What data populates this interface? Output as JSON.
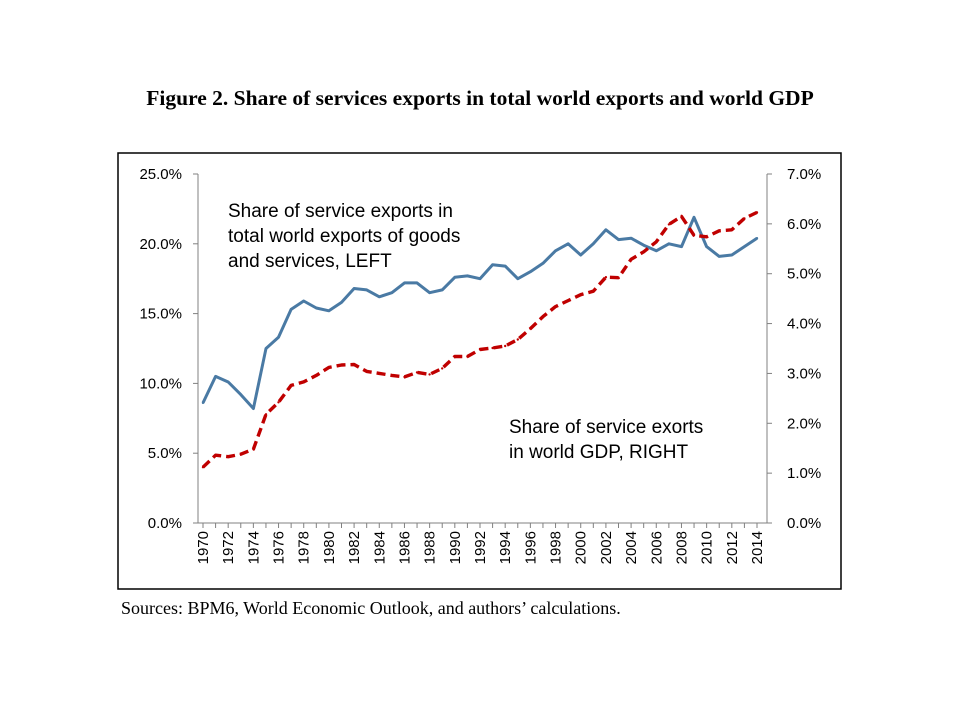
{
  "title": "Figure 2. Share of services exports in total world exports and world GDP",
  "sources": "Sources: BPM6, World Economic Outlook, and authors’ calculations.",
  "chart_data": {
    "type": "line",
    "x": [
      1970,
      1971,
      1972,
      1973,
      1974,
      1975,
      1976,
      1977,
      1978,
      1979,
      1980,
      1981,
      1982,
      1983,
      1984,
      1985,
      1986,
      1987,
      1988,
      1989,
      1990,
      1991,
      1992,
      1993,
      1994,
      1995,
      1996,
      1997,
      1998,
      1999,
      2000,
      2001,
      2002,
      2003,
      2004,
      2005,
      2006,
      2007,
      2008,
      2009,
      2010,
      2011,
      2012,
      2013,
      2014
    ],
    "x_tick_labels": [
      "1970",
      "1972",
      "1974",
      "1976",
      "1978",
      "1980",
      "1982",
      "1984",
      "1986",
      "1988",
      "1990",
      "1992",
      "1994",
      "1996",
      "1998",
      "2000",
      "2002",
      "2004",
      "2006",
      "2008",
      "2010",
      "2012",
      "2014"
    ],
    "left_axis": {
      "ylim": [
        0,
        25
      ],
      "tick_labels": [
        "0.0%",
        "5.0%",
        "10.0%",
        "15.0%",
        "20.0%",
        "25.0%"
      ]
    },
    "right_axis": {
      "ylim": [
        0,
        7
      ],
      "tick_labels": [
        "0.0%",
        "1.0%",
        "2.0%",
        "3.0%",
        "4.0%",
        "5.0%",
        "6.0%",
        "7.0%"
      ]
    },
    "series": [
      {
        "name": "Share of service exports in total world exports of goods and services, LEFT",
        "axis": "left",
        "color": "#4A7AA4",
        "style": "solid",
        "values": [
          8.6,
          10.5,
          10.1,
          9.2,
          8.2,
          12.5,
          13.3,
          15.3,
          15.9,
          15.4,
          15.2,
          15.8,
          16.8,
          16.7,
          16.2,
          16.5,
          17.2,
          17.2,
          16.5,
          16.7,
          17.6,
          17.7,
          17.5,
          18.5,
          18.4,
          17.5,
          18.0,
          18.6,
          19.5,
          20.0,
          19.2,
          20.0,
          21.0,
          20.3,
          20.4,
          19.9,
          19.5,
          20.0,
          19.8,
          21.9,
          19.8,
          19.1,
          19.2,
          19.8,
          20.4
        ]
      },
      {
        "name": "Share of service exorts in world GDP, RIGHT",
        "axis": "right",
        "color": "#C00000",
        "style": "dashed",
        "values": [
          1.12,
          1.36,
          1.33,
          1.38,
          1.48,
          2.18,
          2.42,
          2.76,
          2.83,
          2.96,
          3.12,
          3.17,
          3.18,
          3.04,
          3.0,
          2.96,
          2.93,
          3.02,
          2.98,
          3.1,
          3.34,
          3.34,
          3.48,
          3.51,
          3.55,
          3.68,
          3.9,
          4.14,
          4.34,
          4.46,
          4.58,
          4.65,
          4.93,
          4.92,
          5.29,
          5.44,
          5.64,
          5.99,
          6.15,
          5.77,
          5.74,
          5.86,
          5.88,
          6.11,
          6.23
        ]
      }
    ],
    "annotations": {
      "left_series": [
        "Share of service exports in",
        "total world exports of goods",
        "and services, LEFT"
      ],
      "right_series": [
        "Share of service exorts",
        "in world GDP, RIGHT"
      ]
    }
  }
}
